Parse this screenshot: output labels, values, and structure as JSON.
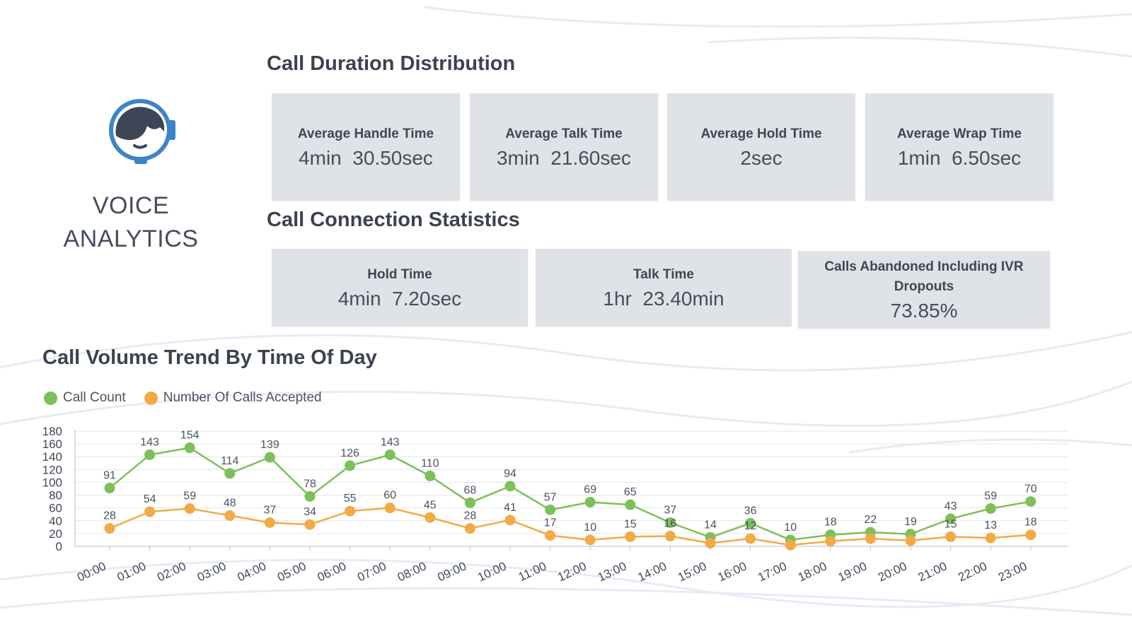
{
  "brand": {
    "line1": "VOICE",
    "line2": "ANALYTICS",
    "logo_icon": "headset-agent-icon",
    "logo_color": "#3d84c6"
  },
  "duration_section": {
    "title": "Call Duration Distribution",
    "cards": [
      {
        "label": "Average Handle Time",
        "value": "4min  30.50sec"
      },
      {
        "label": "Average Talk Time",
        "value": "3min  21.60sec"
      },
      {
        "label": "Average Hold Time",
        "value": "2sec"
      },
      {
        "label": "Average Wrap Time",
        "value": "1min  6.50sec"
      }
    ]
  },
  "connection_section": {
    "title": "Call Connection Statistics",
    "cards": [
      {
        "label": "Hold Time",
        "value": "4min  7.20sec"
      },
      {
        "label": "Talk Time",
        "value": "1hr  23.40min"
      },
      {
        "label": "Calls Abandoned Including IVR Dropouts",
        "value": "73.85%"
      }
    ]
  },
  "trend_section": {
    "title": "Call Volume Trend By Time Of Day"
  },
  "chart_data": {
    "type": "line",
    "title": "Call Volume Trend By Time Of Day",
    "xlabel": "",
    "ylabel": "",
    "ylim": [
      0,
      180
    ],
    "yticks": [
      0,
      20,
      40,
      60,
      80,
      100,
      120,
      140,
      160,
      180
    ],
    "grid": true,
    "legend_position": "top-left",
    "categories": [
      "00:00",
      "01:00",
      "02:00",
      "03:00",
      "04:00",
      "05:00",
      "06:00",
      "07:00",
      "08:00",
      "09:00",
      "10:00",
      "11:00",
      "12:00",
      "13:00",
      "14:00",
      "15:00",
      "16:00",
      "17:00",
      "18:00",
      "19:00",
      "20:00",
      "21:00",
      "22:00",
      "23:00"
    ],
    "series": [
      {
        "name": "Call Count",
        "color": "#7dbf5a",
        "values": [
          91,
          143,
          154,
          114,
          139,
          78,
          126,
          143,
          110,
          68,
          94,
          57,
          69,
          65,
          37,
          14,
          36,
          10,
          18,
          22,
          19,
          43,
          59,
          70
        ]
      },
      {
        "name": "Number Of Calls Accepted",
        "color": "#f2aa45",
        "values": [
          28,
          54,
          59,
          48,
          37,
          34,
          55,
          60,
          45,
          28,
          41,
          17,
          10,
          15,
          16,
          5,
          12,
          2,
          8,
          12,
          9,
          15,
          13,
          18
        ]
      }
    ],
    "labels_shown": [
      [
        "91",
        "143",
        "154",
        "114",
        "139",
        "78",
        "126",
        "143",
        "110",
        "68",
        "94",
        "57",
        "69",
        "65",
        "37",
        "14",
        "36",
        "10",
        "18",
        "22",
        "19",
        "43",
        "59",
        "70"
      ],
      [
        "28",
        "54",
        "59",
        "48",
        "37",
        "34",
        "55",
        "60",
        "45",
        "28",
        "41",
        "17",
        "10",
        "15",
        "16",
        "",
        "12",
        "",
        "",
        "",
        "",
        "15",
        "13",
        "18"
      ]
    ]
  }
}
